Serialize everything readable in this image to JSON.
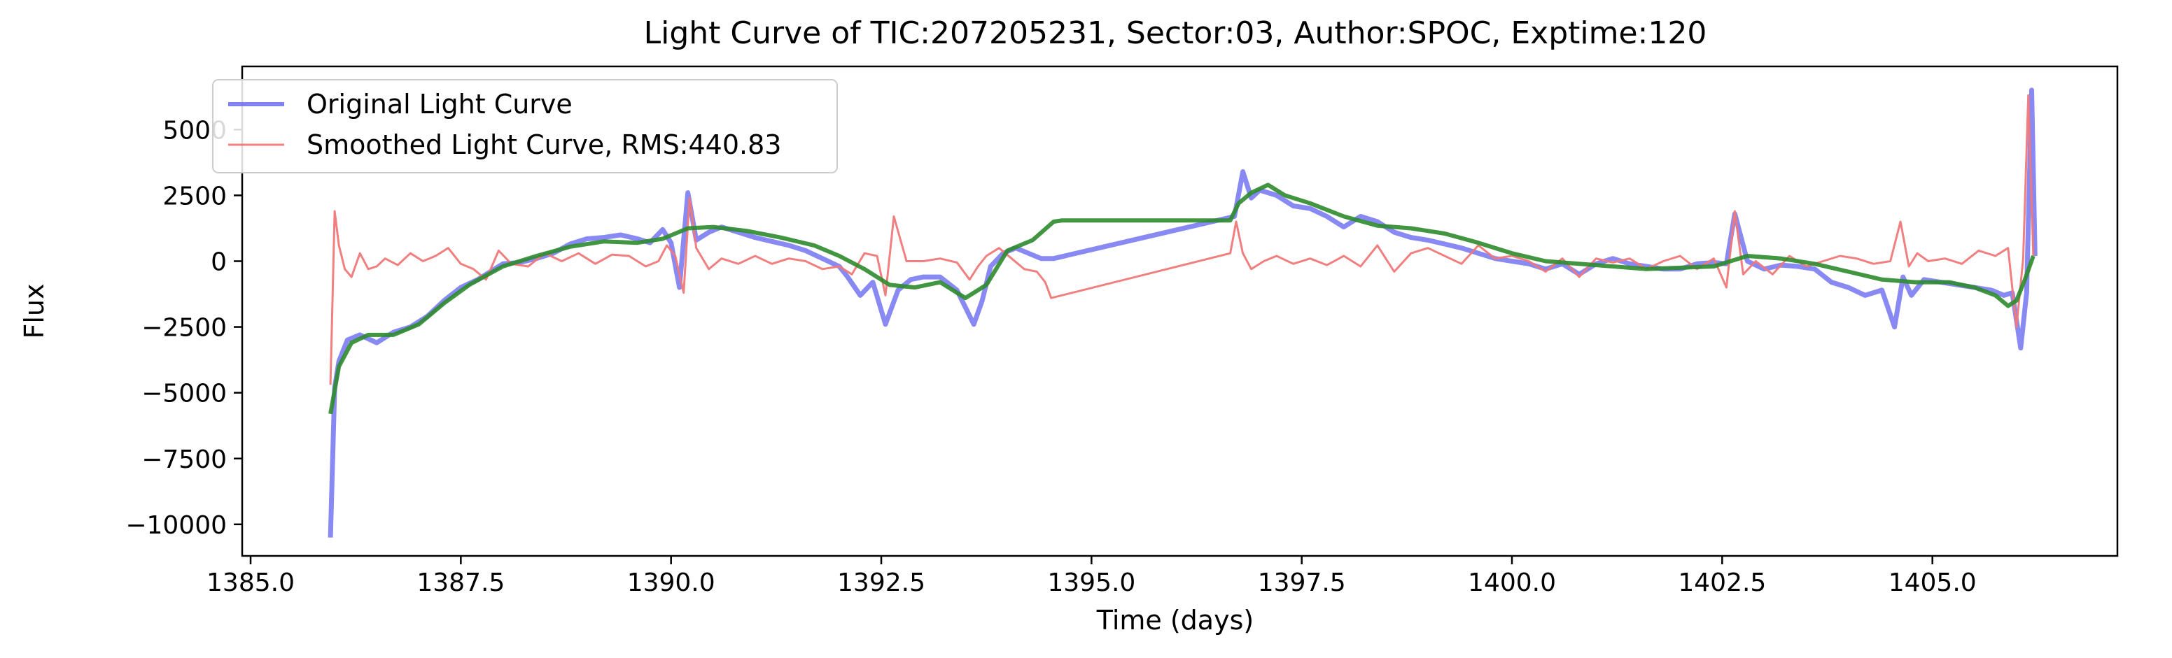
{
  "chart_data": {
    "type": "line",
    "title": "Light Curve of TIC:207205231, Sector:03, Author:SPOC, Exptime:120",
    "xlabel": "Time (days)",
    "ylabel": "Flux",
    "xlim": [
      1384.9,
      1407.2
    ],
    "ylim": [
      -11200,
      7400
    ],
    "xticks": [
      1385.0,
      1387.5,
      1390.0,
      1392.5,
      1395.0,
      1397.5,
      1400.0,
      1402.5,
      1405.0
    ],
    "xtick_labels": [
      "1385.0",
      "1387.5",
      "1390.0",
      "1392.5",
      "1395.0",
      "1397.5",
      "1400.0",
      "1402.5",
      "1405.0"
    ],
    "yticks": [
      5000,
      2500,
      0,
      -2500,
      -5000,
      -7500,
      -10000
    ],
    "ytick_labels": [
      "5000",
      "2500",
      "0",
      "−2500",
      "−5000",
      "−7500",
      "−10000"
    ],
    "grid": false,
    "legend_position": "top-left",
    "series": [
      {
        "name": "Original Light Curve",
        "color": "#6b6bf0",
        "x": [
          1385.95,
          1386.0,
          1386.05,
          1386.15,
          1386.3,
          1386.5,
          1386.7,
          1386.9,
          1387.1,
          1387.3,
          1387.5,
          1387.7,
          1387.9,
          1388.0,
          1388.2,
          1388.4,
          1388.6,
          1388.8,
          1389.0,
          1389.2,
          1389.4,
          1389.6,
          1389.75,
          1389.9,
          1390.0,
          1390.1,
          1390.2,
          1390.3,
          1390.45,
          1390.6,
          1390.8,
          1391.0,
          1391.2,
          1391.4,
          1391.6,
          1391.8,
          1392.0,
          1392.1,
          1392.25,
          1392.4,
          1392.55,
          1392.7,
          1392.85,
          1393.0,
          1393.2,
          1393.4,
          1393.6,
          1393.7,
          1393.8,
          1393.95,
          1394.1,
          1394.25,
          1394.4,
          1394.55,
          1396.7,
          1396.8,
          1396.9,
          1397.0,
          1397.2,
          1397.4,
          1397.6,
          1397.8,
          1398.0,
          1398.2,
          1398.4,
          1398.6,
          1398.8,
          1399.0,
          1399.2,
          1399.4,
          1399.6,
          1399.8,
          1400.0,
          1400.2,
          1400.4,
          1400.6,
          1400.8,
          1401.0,
          1401.2,
          1401.4,
          1401.6,
          1401.8,
          1402.0,
          1402.2,
          1402.4,
          1402.55,
          1402.65,
          1402.8,
          1403.0,
          1403.2,
          1403.4,
          1403.6,
          1403.8,
          1404.0,
          1404.2,
          1404.4,
          1404.55,
          1404.65,
          1404.75,
          1404.9,
          1405.1,
          1405.3,
          1405.5,
          1405.7,
          1405.85,
          1405.95,
          1406.05,
          1406.12,
          1406.18,
          1406.22
        ],
        "y": [
          -10500,
          -4800,
          -3800,
          -3000,
          -2800,
          -3100,
          -2700,
          -2500,
          -2100,
          -1500,
          -1000,
          -700,
          -300,
          -100,
          -50,
          100,
          300,
          650,
          850,
          900,
          1000,
          850,
          700,
          1200,
          700,
          -1000,
          2600,
          800,
          1100,
          1300,
          1100,
          900,
          750,
          600,
          400,
          100,
          -200,
          -600,
          -1300,
          -800,
          -2400,
          -1100,
          -700,
          -600,
          -600,
          -1100,
          -2400,
          -1500,
          -200,
          300,
          500,
          300,
          100,
          100,
          1700,
          3400,
          2400,
          2700,
          2500,
          2100,
          2000,
          1700,
          1300,
          1700,
          1500,
          1100,
          900,
          800,
          650,
          500,
          300,
          100,
          0,
          -100,
          -300,
          -100,
          -500,
          -100,
          100,
          -100,
          -200,
          -300,
          -300,
          -100,
          -50,
          -100,
          1800,
          0,
          -300,
          -150,
          -200,
          -300,
          -800,
          -1000,
          -1300,
          -1100,
          -2500,
          -600,
          -1300,
          -700,
          -800,
          -900,
          -1000,
          -1100,
          -1300,
          -1200,
          -3300,
          -1200,
          6500,
          200
        ]
      },
      {
        "name": "Smoothed Light Curve, RMS:440.83",
        "color": "#f07878",
        "x": [
          1385.95,
          1386.0,
          1386.05,
          1386.12,
          1386.2,
          1386.3,
          1386.4,
          1386.5,
          1386.6,
          1386.75,
          1386.9,
          1387.05,
          1387.2,
          1387.35,
          1387.5,
          1387.65,
          1387.8,
          1387.95,
          1388.1,
          1388.3,
          1388.5,
          1388.7,
          1388.9,
          1389.1,
          1389.3,
          1389.5,
          1389.7,
          1389.85,
          1389.95,
          1390.05,
          1390.15,
          1390.22,
          1390.3,
          1390.45,
          1390.6,
          1390.8,
          1391.0,
          1391.2,
          1391.4,
          1391.6,
          1391.8,
          1392.0,
          1392.15,
          1392.3,
          1392.45,
          1392.55,
          1392.65,
          1392.8,
          1393.0,
          1393.2,
          1393.4,
          1393.55,
          1393.65,
          1393.75,
          1393.9,
          1394.05,
          1394.2,
          1394.35,
          1394.45,
          1394.52,
          1396.65,
          1396.72,
          1396.8,
          1396.9,
          1397.05,
          1397.2,
          1397.4,
          1397.6,
          1397.8,
          1398.0,
          1398.2,
          1398.4,
          1398.6,
          1398.8,
          1399.0,
          1399.2,
          1399.4,
          1399.6,
          1399.8,
          1400.0,
          1400.2,
          1400.4,
          1400.6,
          1400.8,
          1401.0,
          1401.2,
          1401.4,
          1401.6,
          1401.8,
          1402.0,
          1402.2,
          1402.4,
          1402.55,
          1402.65,
          1402.75,
          1402.9,
          1403.1,
          1403.3,
          1403.5,
          1403.7,
          1403.9,
          1404.1,
          1404.3,
          1404.5,
          1404.62,
          1404.72,
          1404.82,
          1404.95,
          1405.15,
          1405.35,
          1405.55,
          1405.75,
          1405.9,
          1406.0,
          1406.08,
          1406.14,
          1406.2
        ],
        "y": [
          -4700,
          1900,
          600,
          -300,
          -600,
          300,
          -300,
          -200,
          100,
          -150,
          300,
          0,
          200,
          500,
          -100,
          -300,
          -700,
          400,
          -100,
          -200,
          300,
          0,
          300,
          -100,
          250,
          200,
          -200,
          0,
          600,
          200,
          -1200,
          2400,
          500,
          -300,
          100,
          -100,
          200,
          -100,
          100,
          0,
          -300,
          -200,
          -500,
          300,
          200,
          -1300,
          1700,
          0,
          0,
          100,
          -50,
          -700,
          -200,
          200,
          500,
          100,
          -300,
          -400,
          -800,
          -1400,
          300,
          1500,
          300,
          -300,
          0,
          200,
          -100,
          100,
          -150,
          200,
          -200,
          600,
          -400,
          300,
          500,
          200,
          -100,
          600,
          100,
          200,
          0,
          -400,
          100,
          -600,
          100,
          -50,
          100,
          -300,
          0,
          200,
          -300,
          100,
          -1000,
          1900,
          -500,
          0,
          -500,
          200,
          -200,
          0,
          200,
          100,
          -100,
          0,
          1500,
          -200,
          300,
          0,
          100,
          -100,
          400,
          200,
          500,
          -2500,
          100,
          6300,
          200
        ]
      },
      {
        "name": "",
        "color": "#2e8b2e",
        "x": [
          1385.95,
          1386.05,
          1386.2,
          1386.4,
          1386.7,
          1387.0,
          1387.3,
          1387.6,
          1388.0,
          1388.4,
          1388.8,
          1389.2,
          1389.6,
          1389.9,
          1390.2,
          1390.5,
          1390.9,
          1391.3,
          1391.7,
          1392.0,
          1392.3,
          1392.6,
          1392.9,
          1393.2,
          1393.5,
          1393.75,
          1394.0,
          1394.3,
          1394.55,
          1394.65,
          1396.65,
          1396.75,
          1396.9,
          1397.1,
          1397.3,
          1397.6,
          1398.0,
          1398.4,
          1398.8,
          1399.2,
          1399.6,
          1400.0,
          1400.4,
          1400.8,
          1401.2,
          1401.6,
          1402.0,
          1402.4,
          1402.8,
          1403.2,
          1403.6,
          1404.0,
          1404.4,
          1404.8,
          1405.2,
          1405.5,
          1405.75,
          1405.9,
          1406.0,
          1406.1,
          1406.2
        ],
        "y": [
          -5800,
          -4000,
          -3100,
          -2800,
          -2800,
          -2400,
          -1600,
          -900,
          -200,
          200,
          550,
          750,
          700,
          850,
          1250,
          1300,
          1150,
          900,
          600,
          200,
          -300,
          -900,
          -1000,
          -800,
          -1400,
          -900,
          400,
          800,
          1500,
          1550,
          1550,
          2200,
          2600,
          2900,
          2500,
          2200,
          1700,
          1350,
          1250,
          1050,
          700,
          300,
          0,
          -100,
          -200,
          -300,
          -250,
          -200,
          200,
          100,
          -100,
          -400,
          -700,
          -800,
          -800,
          -1000,
          -1300,
          -1700,
          -1500,
          -700,
          200
        ]
      }
    ]
  }
}
